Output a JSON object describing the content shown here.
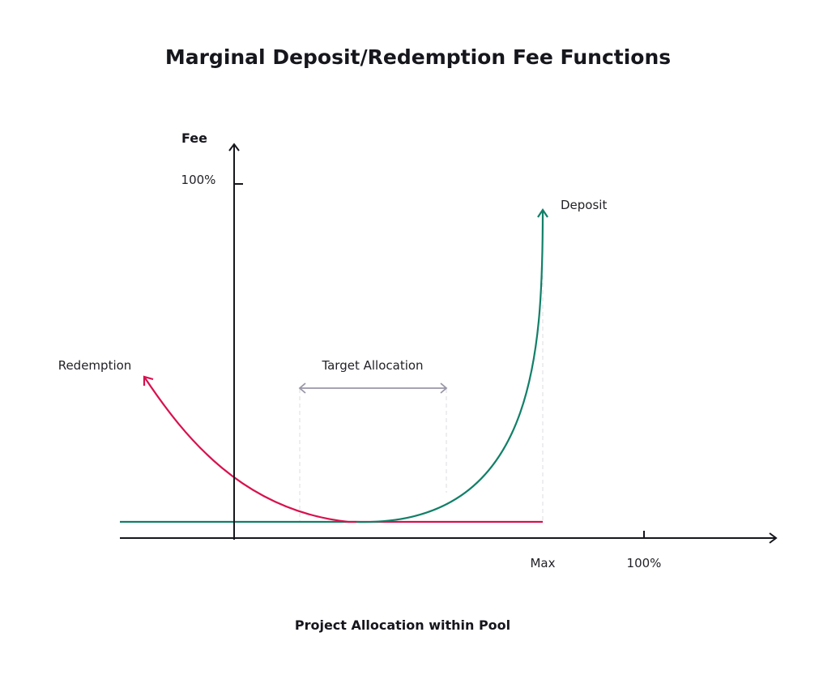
{
  "title": "Marginal Deposit/Redemption Fee Functions",
  "y_axis": {
    "title": "Fee",
    "tick_label": "100%"
  },
  "x_axis": {
    "title": "Project Allocation within Pool",
    "tick_labels": [
      "Max",
      "100%"
    ]
  },
  "curves": {
    "deposit": {
      "label": "Deposit",
      "color": "#118068"
    },
    "redemption": {
      "label": "Redemption",
      "color": "#d8114e"
    }
  },
  "target_range": {
    "label": "Target Allocation",
    "color": "#9a97a8"
  },
  "colors": {
    "axis": "#16161d",
    "guide": "#dcdce0"
  }
}
